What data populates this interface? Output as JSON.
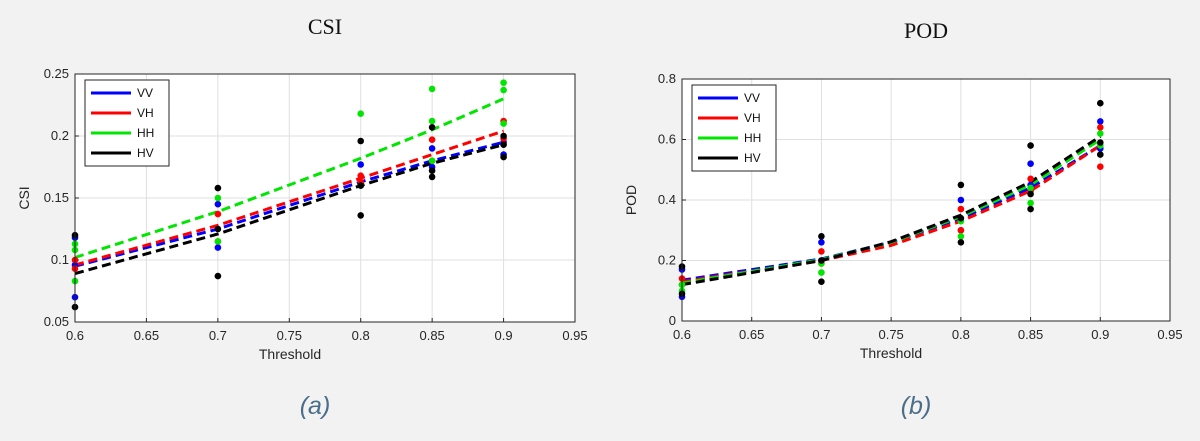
{
  "chart_data": [
    {
      "type": "scatter",
      "title": "CSI",
      "caption": "(a)",
      "xlabel": "Threshold",
      "ylabel": "CSI",
      "xlim": [
        0.6,
        0.95
      ],
      "ylim": [
        0.05,
        0.25
      ],
      "xticks": [
        0.6,
        0.65,
        0.7,
        0.75,
        0.8,
        0.85,
        0.9,
        0.95
      ],
      "xtick_labels": [
        "0.6",
        "0.65",
        "0.7",
        "0.75",
        "0.8",
        "0.85",
        "0.9",
        "0.95"
      ],
      "yticks": [
        0.05,
        0.1,
        0.15,
        0.2,
        0.25
      ],
      "ytick_labels": [
        "0.05",
        "0.1",
        "0.15",
        "0.2",
        "0.25"
      ],
      "grid": true,
      "legend_position": "top-left",
      "series": [
        {
          "name": "VV",
          "color": "#0000ff",
          "points": [
            [
              0.6,
              0.118
            ],
            [
              0.6,
              0.096
            ],
            [
              0.6,
              0.07
            ],
            [
              0.7,
              0.145
            ],
            [
              0.7,
              0.11
            ],
            [
              0.8,
              0.177
            ],
            [
              0.8,
              0.16
            ],
            [
              0.85,
              0.19
            ],
            [
              0.85,
              0.175
            ],
            [
              0.9,
              0.195
            ],
            [
              0.9,
              0.185
            ]
          ],
          "trend": [
            [
              0.6,
              0.095
            ],
            [
              0.7,
              0.125
            ],
            [
              0.8,
              0.163
            ],
            [
              0.85,
              0.18
            ],
            [
              0.9,
              0.195
            ]
          ]
        },
        {
          "name": "VH",
          "color": "#ff0000",
          "points": [
            [
              0.6,
              0.1
            ],
            [
              0.6,
              0.093
            ],
            [
              0.7,
              0.137
            ],
            [
              0.7,
              0.115
            ],
            [
              0.8,
              0.168
            ],
            [
              0.8,
              0.163
            ],
            [
              0.85,
              0.197
            ],
            [
              0.85,
              0.18
            ],
            [
              0.9,
              0.212
            ],
            [
              0.9,
              0.198
            ]
          ],
          "trend": [
            [
              0.6,
              0.096
            ],
            [
              0.7,
              0.128
            ],
            [
              0.8,
              0.166
            ],
            [
              0.85,
              0.185
            ],
            [
              0.9,
              0.204
            ]
          ]
        },
        {
          "name": "HH",
          "color": "#00e600",
          "points": [
            [
              0.6,
              0.113
            ],
            [
              0.6,
              0.108
            ],
            [
              0.6,
              0.083
            ],
            [
              0.7,
              0.15
            ],
            [
              0.7,
              0.115
            ],
            [
              0.8,
              0.218
            ],
            [
              0.8,
              0.16
            ],
            [
              0.85,
              0.238
            ],
            [
              0.85,
              0.212
            ],
            [
              0.85,
              0.18
            ],
            [
              0.9,
              0.243
            ],
            [
              0.9,
              0.237
            ],
            [
              0.9,
              0.21
            ]
          ],
          "trend": [
            [
              0.6,
              0.102
            ],
            [
              0.7,
              0.139
            ],
            [
              0.8,
              0.182
            ],
            [
              0.85,
              0.205
            ],
            [
              0.9,
              0.23
            ]
          ]
        },
        {
          "name": "HV",
          "color": "#000000",
          "points": [
            [
              0.6,
              0.12
            ],
            [
              0.6,
              0.062
            ],
            [
              0.7,
              0.158
            ],
            [
              0.7,
              0.125
            ],
            [
              0.7,
              0.087
            ],
            [
              0.8,
              0.196
            ],
            [
              0.8,
              0.16
            ],
            [
              0.8,
              0.136
            ],
            [
              0.85,
              0.207
            ],
            [
              0.85,
              0.172
            ],
            [
              0.85,
              0.167
            ],
            [
              0.9,
              0.2
            ],
            [
              0.9,
              0.193
            ],
            [
              0.9,
              0.183
            ]
          ],
          "trend": [
            [
              0.6,
              0.089
            ],
            [
              0.7,
              0.121
            ],
            [
              0.8,
              0.16
            ],
            [
              0.85,
              0.178
            ],
            [
              0.9,
              0.193
            ]
          ]
        }
      ]
    },
    {
      "type": "scatter",
      "title": "POD",
      "caption": "(b)",
      "xlabel": "Threshold",
      "ylabel": "POD",
      "xlim": [
        0.6,
        0.95
      ],
      "ylim": [
        0,
        0.8
      ],
      "xticks": [
        0.6,
        0.65,
        0.7,
        0.75,
        0.8,
        0.85,
        0.9,
        0.95
      ],
      "xtick_labels": [
        "0.6",
        "0.65",
        "0.7",
        "0.75",
        "0.8",
        "0.85",
        "0.9",
        "0.95"
      ],
      "yticks": [
        0,
        0.2,
        0.4,
        0.6,
        0.8
      ],
      "ytick_labels": [
        "0",
        "0.2",
        "0.4",
        "0.6",
        "0.8"
      ],
      "grid": true,
      "legend_position": "top-left",
      "series": [
        {
          "name": "VV",
          "color": "#0000ff",
          "points": [
            [
              0.6,
              0.17
            ],
            [
              0.6,
              0.08
            ],
            [
              0.7,
              0.26
            ],
            [
              0.7,
              0.2
            ],
            [
              0.8,
              0.4
            ],
            [
              0.8,
              0.3
            ],
            [
              0.85,
              0.52
            ],
            [
              0.85,
              0.45
            ],
            [
              0.9,
              0.66
            ],
            [
              0.9,
              0.57
            ]
          ],
          "trend": [
            [
              0.6,
              0.135
            ],
            [
              0.7,
              0.205
            ],
            [
              0.75,
              0.26
            ],
            [
              0.8,
              0.34
            ],
            [
              0.85,
              0.44
            ],
            [
              0.9,
              0.58
            ]
          ]
        },
        {
          "name": "VH",
          "color": "#ff0000",
          "points": [
            [
              0.6,
              0.14
            ],
            [
              0.6,
              0.12
            ],
            [
              0.7,
              0.23
            ],
            [
              0.7,
              0.19
            ],
            [
              0.8,
              0.37
            ],
            [
              0.8,
              0.3
            ],
            [
              0.85,
              0.47
            ],
            [
              0.85,
              0.43
            ],
            [
              0.9,
              0.64
            ],
            [
              0.9,
              0.51
            ]
          ],
          "trend": [
            [
              0.6,
              0.13
            ],
            [
              0.7,
              0.2
            ],
            [
              0.75,
              0.25
            ],
            [
              0.8,
              0.33
            ],
            [
              0.85,
              0.43
            ],
            [
              0.9,
              0.58
            ]
          ]
        },
        {
          "name": "HH",
          "color": "#00e600",
          "points": [
            [
              0.6,
              0.12
            ],
            [
              0.6,
              0.1
            ],
            [
              0.7,
              0.19
            ],
            [
              0.7,
              0.16
            ],
            [
              0.8,
              0.33
            ],
            [
              0.8,
              0.28
            ],
            [
              0.85,
              0.44
            ],
            [
              0.85,
              0.39
            ],
            [
              0.9,
              0.62
            ],
            [
              0.9,
              0.58
            ]
          ],
          "trend": [
            [
              0.6,
              0.125
            ],
            [
              0.7,
              0.203
            ],
            [
              0.75,
              0.26
            ],
            [
              0.8,
              0.345
            ],
            [
              0.85,
              0.45
            ],
            [
              0.9,
              0.6
            ]
          ]
        },
        {
          "name": "HV",
          "color": "#000000",
          "points": [
            [
              0.6,
              0.18
            ],
            [
              0.6,
              0.09
            ],
            [
              0.7,
              0.28
            ],
            [
              0.7,
              0.2
            ],
            [
              0.7,
              0.13
            ],
            [
              0.8,
              0.45
            ],
            [
              0.8,
              0.34
            ],
            [
              0.8,
              0.26
            ],
            [
              0.85,
              0.58
            ],
            [
              0.85,
              0.42
            ],
            [
              0.85,
              0.37
            ],
            [
              0.9,
              0.72
            ],
            [
              0.9,
              0.59
            ],
            [
              0.9,
              0.55
            ]
          ],
          "trend": [
            [
              0.6,
              0.12
            ],
            [
              0.7,
              0.2
            ],
            [
              0.75,
              0.262
            ],
            [
              0.8,
              0.35
            ],
            [
              0.85,
              0.46
            ],
            [
              0.9,
              0.61
            ]
          ]
        }
      ]
    }
  ]
}
